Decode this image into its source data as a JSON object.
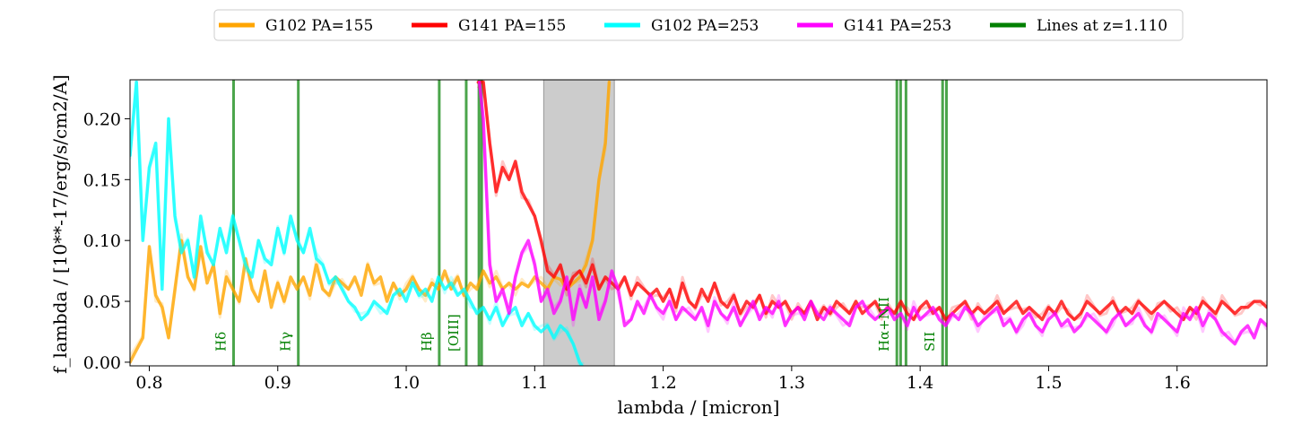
{
  "chart_data": {
    "type": "line",
    "xlabel": "lambda / [micron]",
    "ylabel": "f_lambda / [10**-17/erg/s/cm2/A]",
    "xlim": [
      0.785,
      1.67
    ],
    "ylim": [
      -0.003,
      0.232
    ],
    "xticks": [
      "0.8",
      "0.9",
      "1.0",
      "1.1",
      "1.2",
      "1.3",
      "1.4",
      "1.5",
      "1.6"
    ],
    "yticks": [
      "0.00",
      "0.05",
      "0.10",
      "0.15",
      "0.20"
    ],
    "legend_position": "top-center, above plot",
    "grid": false,
    "shaded_region": {
      "x": [
        1.107,
        1.162
      ],
      "color": "#cccccc"
    },
    "legend": [
      {
        "label": "G102 PA=155",
        "color": "#ffa500"
      },
      {
        "label": "G141 PA=155",
        "color": "#ff0000"
      },
      {
        "label": "G102 PA=253",
        "color": "#00ffff"
      },
      {
        "label": "G141 PA=253",
        "color": "#ff00ff"
      },
      {
        "label": "Lines at z=1.110",
        "color": "#008000"
      }
    ],
    "line_color": "#008000",
    "emission_lines": [
      {
        "label": "Hδ",
        "x": [
          0.8656
        ]
      },
      {
        "label": "Hγ",
        "x": [
          0.916
        ]
      },
      {
        "label": "Hβ",
        "x": [
          1.0257
        ]
      },
      {
        "label": "[OIII]",
        "x": [
          1.0467,
          1.0566,
          1.0587
        ]
      },
      {
        "label": "Hα+NII",
        "x": [
          1.3819,
          1.3848,
          1.389
        ]
      },
      {
        "label": "SII",
        "x": [
          1.4175,
          1.4205
        ]
      }
    ],
    "series": [
      {
        "name": "G102 PA=155",
        "color": "#ffa500",
        "x": [
          0.785,
          0.795,
          0.8,
          0.805,
          0.81,
          0.815,
          0.82,
          0.825,
          0.83,
          0.835,
          0.84,
          0.845,
          0.85,
          0.855,
          0.86,
          0.865,
          0.87,
          0.875,
          0.88,
          0.885,
          0.89,
          0.895,
          0.9,
          0.905,
          0.91,
          0.915,
          0.92,
          0.925,
          0.93,
          0.935,
          0.94,
          0.945,
          0.95,
          0.955,
          0.96,
          0.965,
          0.97,
          0.975,
          0.98,
          0.985,
          0.99,
          0.995,
          1.0,
          1.005,
          1.01,
          1.015,
          1.02,
          1.025,
          1.03,
          1.035,
          1.04,
          1.045,
          1.05,
          1.055,
          1.06,
          1.065,
          1.07,
          1.075,
          1.08,
          1.085,
          1.09,
          1.095,
          1.1,
          1.105,
          1.11,
          1.115,
          1.12,
          1.125,
          1.13,
          1.135,
          1.14,
          1.145,
          1.15,
          1.155,
          1.158
        ],
        "y": [
          0.0,
          0.02,
          0.095,
          0.055,
          0.045,
          0.02,
          0.06,
          0.1,
          0.07,
          0.06,
          0.095,
          0.065,
          0.08,
          0.04,
          0.07,
          0.06,
          0.05,
          0.085,
          0.06,
          0.05,
          0.075,
          0.045,
          0.065,
          0.05,
          0.07,
          0.06,
          0.07,
          0.055,
          0.08,
          0.06,
          0.055,
          0.07,
          0.065,
          0.06,
          0.07,
          0.055,
          0.08,
          0.065,
          0.07,
          0.05,
          0.065,
          0.055,
          0.06,
          0.07,
          0.06,
          0.055,
          0.065,
          0.06,
          0.075,
          0.06,
          0.07,
          0.055,
          0.065,
          0.06,
          0.075,
          0.065,
          0.07,
          0.06,
          0.065,
          0.06,
          0.065,
          0.062,
          0.07,
          0.065,
          0.06,
          0.07,
          0.068,
          0.06,
          0.065,
          0.07,
          0.08,
          0.1,
          0.15,
          0.18,
          0.23
        ]
      },
      {
        "name": "G141 PA=155",
        "color": "#ff0000",
        "x": [
          1.056,
          1.06,
          1.065,
          1.07,
          1.075,
          1.08,
          1.085,
          1.09,
          1.095,
          1.1,
          1.105,
          1.11,
          1.115,
          1.12,
          1.125,
          1.13,
          1.135,
          1.14,
          1.145,
          1.15,
          1.155,
          1.16,
          1.165,
          1.17,
          1.175,
          1.18,
          1.185,
          1.19,
          1.195,
          1.2,
          1.205,
          1.21,
          1.215,
          1.22,
          1.225,
          1.23,
          1.235,
          1.24,
          1.245,
          1.25,
          1.255,
          1.26,
          1.265,
          1.27,
          1.275,
          1.28,
          1.285,
          1.29,
          1.295,
          1.3,
          1.305,
          1.31,
          1.315,
          1.32,
          1.325,
          1.33,
          1.335,
          1.34,
          1.345,
          1.35,
          1.355,
          1.36,
          1.365,
          1.37,
          1.375,
          1.38,
          1.385,
          1.39,
          1.395,
          1.4,
          1.405,
          1.41,
          1.415,
          1.42,
          1.425,
          1.43,
          1.435,
          1.44,
          1.445,
          1.45,
          1.455,
          1.46,
          1.465,
          1.47,
          1.475,
          1.48,
          1.485,
          1.49,
          1.495,
          1.5,
          1.505,
          1.51,
          1.515,
          1.52,
          1.525,
          1.53,
          1.535,
          1.54,
          1.545,
          1.55,
          1.555,
          1.56,
          1.565,
          1.57,
          1.575,
          1.58,
          1.585,
          1.59,
          1.595,
          1.6,
          1.605,
          1.61,
          1.615,
          1.62,
          1.625,
          1.63,
          1.635,
          1.64,
          1.645,
          1.65,
          1.655,
          1.66,
          1.665,
          1.67
        ],
        "y": [
          0.23,
          0.23,
          0.18,
          0.14,
          0.16,
          0.15,
          0.165,
          0.14,
          0.13,
          0.12,
          0.1,
          0.075,
          0.07,
          0.08,
          0.06,
          0.07,
          0.075,
          0.065,
          0.08,
          0.06,
          0.07,
          0.065,
          0.06,
          0.07,
          0.055,
          0.065,
          0.06,
          0.055,
          0.06,
          0.05,
          0.06,
          0.045,
          0.065,
          0.05,
          0.045,
          0.06,
          0.05,
          0.065,
          0.05,
          0.045,
          0.055,
          0.04,
          0.05,
          0.045,
          0.055,
          0.04,
          0.05,
          0.045,
          0.05,
          0.04,
          0.045,
          0.04,
          0.05,
          0.035,
          0.045,
          0.04,
          0.05,
          0.045,
          0.04,
          0.05,
          0.04,
          0.045,
          0.05,
          0.04,
          0.045,
          0.04,
          0.05,
          0.04,
          0.035,
          0.045,
          0.05,
          0.04,
          0.045,
          0.035,
          0.04,
          0.045,
          0.05,
          0.04,
          0.045,
          0.04,
          0.045,
          0.05,
          0.04,
          0.045,
          0.05,
          0.04,
          0.045,
          0.04,
          0.035,
          0.045,
          0.04,
          0.05,
          0.04,
          0.035,
          0.04,
          0.05,
          0.045,
          0.04,
          0.045,
          0.05,
          0.04,
          0.045,
          0.04,
          0.05,
          0.045,
          0.04,
          0.045,
          0.05,
          0.045,
          0.04,
          0.035,
          0.045,
          0.04,
          0.05,
          0.045,
          0.04,
          0.05,
          0.045,
          0.04,
          0.045,
          0.045,
          0.05,
          0.05,
          0.045
        ]
      },
      {
        "name": "G102 PA=253",
        "color": "#00ffff",
        "x": [
          0.785,
          0.79,
          0.795,
          0.8,
          0.805,
          0.81,
          0.815,
          0.82,
          0.825,
          0.83,
          0.835,
          0.84,
          0.845,
          0.85,
          0.855,
          0.86,
          0.865,
          0.87,
          0.875,
          0.88,
          0.885,
          0.89,
          0.895,
          0.9,
          0.905,
          0.91,
          0.915,
          0.92,
          0.925,
          0.93,
          0.935,
          0.94,
          0.945,
          0.95,
          0.955,
          0.96,
          0.965,
          0.97,
          0.975,
          0.98,
          0.985,
          0.99,
          0.995,
          1.0,
          1.005,
          1.01,
          1.015,
          1.02,
          1.025,
          1.03,
          1.035,
          1.04,
          1.045,
          1.05,
          1.055,
          1.06,
          1.065,
          1.07,
          1.075,
          1.08,
          1.085,
          1.09,
          1.095,
          1.1,
          1.105,
          1.11,
          1.115,
          1.12,
          1.125,
          1.13,
          1.135,
          1.138
        ],
        "y": [
          0.17,
          0.23,
          0.1,
          0.16,
          0.18,
          0.06,
          0.2,
          0.12,
          0.09,
          0.1,
          0.07,
          0.12,
          0.09,
          0.08,
          0.11,
          0.09,
          0.12,
          0.1,
          0.08,
          0.07,
          0.1,
          0.085,
          0.08,
          0.11,
          0.09,
          0.12,
          0.1,
          0.09,
          0.11,
          0.085,
          0.08,
          0.065,
          0.07,
          0.06,
          0.05,
          0.045,
          0.035,
          0.04,
          0.05,
          0.045,
          0.04,
          0.055,
          0.06,
          0.05,
          0.065,
          0.055,
          0.06,
          0.05,
          0.07,
          0.06,
          0.065,
          0.055,
          0.06,
          0.05,
          0.04,
          0.045,
          0.035,
          0.045,
          0.03,
          0.04,
          0.045,
          0.03,
          0.04,
          0.03,
          0.025,
          0.03,
          0.02,
          0.03,
          0.025,
          0.015,
          0.0,
          -0.005
        ]
      },
      {
        "name": "G141 PA=253",
        "color": "#ff00ff",
        "x": [
          1.057,
          1.06,
          1.065,
          1.07,
          1.075,
          1.08,
          1.085,
          1.09,
          1.095,
          1.1,
          1.105,
          1.11,
          1.115,
          1.12,
          1.125,
          1.13,
          1.135,
          1.14,
          1.145,
          1.15,
          1.155,
          1.16,
          1.165,
          1.17,
          1.175,
          1.18,
          1.185,
          1.19,
          1.195,
          1.2,
          1.205,
          1.21,
          1.215,
          1.22,
          1.225,
          1.23,
          1.235,
          1.24,
          1.245,
          1.25,
          1.255,
          1.26,
          1.265,
          1.27,
          1.275,
          1.28,
          1.285,
          1.29,
          1.295,
          1.3,
          1.305,
          1.31,
          1.315,
          1.32,
          1.325,
          1.33,
          1.335,
          1.34,
          1.345,
          1.35,
          1.355,
          1.36,
          1.365,
          1.37,
          1.375,
          1.38,
          1.385,
          1.39,
          1.395,
          1.4,
          1.405,
          1.41,
          1.415,
          1.42,
          1.425,
          1.43,
          1.435,
          1.44,
          1.445,
          1.45,
          1.455,
          1.46,
          1.465,
          1.47,
          1.475,
          1.48,
          1.485,
          1.49,
          1.495,
          1.5,
          1.505,
          1.51,
          1.515,
          1.52,
          1.525,
          1.53,
          1.535,
          1.54,
          1.545,
          1.55,
          1.555,
          1.56,
          1.565,
          1.57,
          1.575,
          1.58,
          1.585,
          1.59,
          1.595,
          1.6,
          1.605,
          1.61,
          1.615,
          1.62,
          1.625,
          1.63,
          1.635,
          1.64,
          1.645,
          1.65,
          1.655,
          1.66,
          1.665,
          1.67
        ],
        "y": [
          0.23,
          0.2,
          0.08,
          0.05,
          0.06,
          0.04,
          0.07,
          0.09,
          0.1,
          0.08,
          0.05,
          0.06,
          0.04,
          0.05,
          0.07,
          0.035,
          0.06,
          0.045,
          0.07,
          0.035,
          0.05,
          0.075,
          0.06,
          0.03,
          0.035,
          0.05,
          0.04,
          0.055,
          0.045,
          0.04,
          0.05,
          0.035,
          0.045,
          0.04,
          0.035,
          0.045,
          0.03,
          0.05,
          0.04,
          0.035,
          0.045,
          0.03,
          0.04,
          0.05,
          0.035,
          0.045,
          0.04,
          0.05,
          0.03,
          0.04,
          0.045,
          0.035,
          0.05,
          0.04,
          0.035,
          0.045,
          0.04,
          0.035,
          0.03,
          0.045,
          0.05,
          0.04,
          0.035,
          0.04,
          0.045,
          0.035,
          0.04,
          0.03,
          0.045,
          0.035,
          0.04,
          0.045,
          0.035,
          0.03,
          0.04,
          0.035,
          0.045,
          0.04,
          0.03,
          0.035,
          0.04,
          0.045,
          0.03,
          0.035,
          0.025,
          0.035,
          0.04,
          0.03,
          0.025,
          0.035,
          0.04,
          0.03,
          0.035,
          0.025,
          0.03,
          0.04,
          0.035,
          0.03,
          0.025,
          0.035,
          0.04,
          0.03,
          0.035,
          0.04,
          0.03,
          0.025,
          0.04,
          0.035,
          0.03,
          0.025,
          0.04,
          0.035,
          0.045,
          0.03,
          0.04,
          0.035,
          0.025,
          0.02,
          0.015,
          0.025,
          0.03,
          0.02,
          0.035,
          0.03
        ]
      }
    ]
  }
}
